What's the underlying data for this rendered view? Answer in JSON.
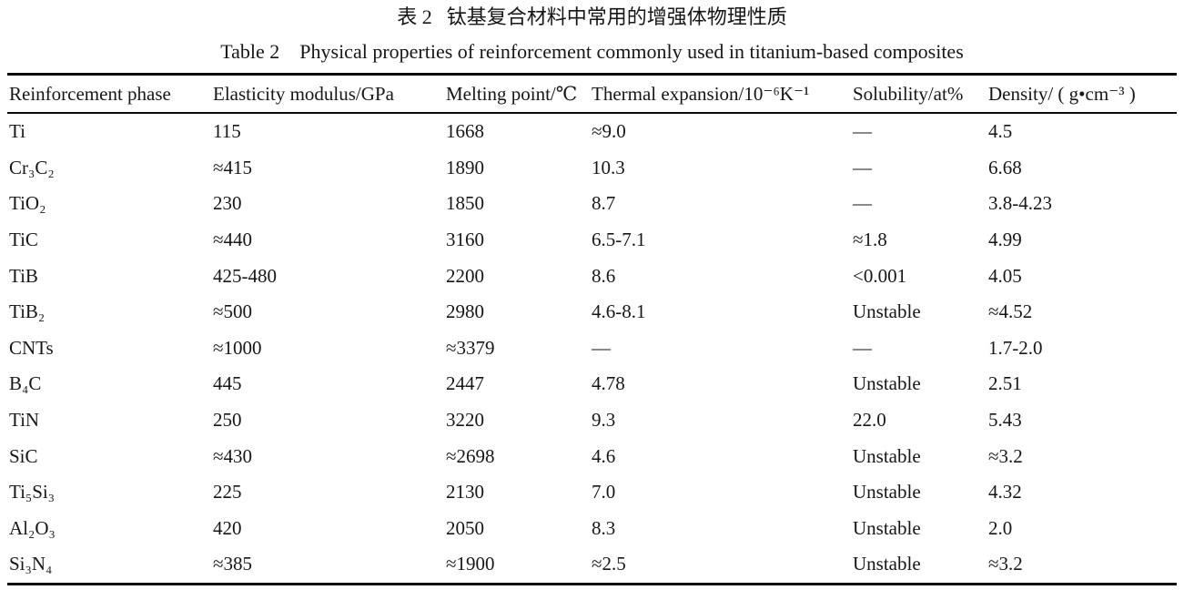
{
  "captions": {
    "chinese_label": "表 2",
    "chinese_title": "钛基复合材料中常用的增强体物理性质",
    "english_label": "Table 2",
    "english_title": "Physical properties of reinforcement commonly used in titanium-based composites"
  },
  "table": {
    "columns": [
      "Reinforcement phase",
      "Elasticity modulus/GPa",
      "Melting point/℃",
      "Thermal expansion/10⁻⁶K⁻¹",
      "Solubility/at%",
      "Density/ ( g•cm⁻³ )"
    ],
    "rows": [
      [
        "Ti",
        "115",
        "1668",
        "≈9.0",
        "—",
        "4.5"
      ],
      [
        "Cr₃C₂",
        "≈415",
        "1890",
        "10.3",
        "—",
        "6.68"
      ],
      [
        "TiO₂",
        "230",
        "1850",
        "8.7",
        "—",
        "3.8-4.23"
      ],
      [
        "TiC",
        "≈440",
        "3160",
        "6.5-7.1",
        "≈1.8",
        "4.99"
      ],
      [
        "TiB",
        "425-480",
        "2200",
        "8.6",
        "<0.001",
        "4.05"
      ],
      [
        "TiB₂",
        "≈500",
        "2980",
        "4.6-8.1",
        "Unstable",
        "≈4.52"
      ],
      [
        "CNTs",
        "≈1000",
        "≈3379",
        "—",
        "—",
        "1.7-2.0"
      ],
      [
        "B₄C",
        "445",
        "2447",
        "4.78",
        "Unstable",
        "2.51"
      ],
      [
        "TiN",
        "250",
        "3220",
        "9.3",
        "22.0",
        "5.43"
      ],
      [
        "SiC",
        "≈430",
        "≈2698",
        "4.6",
        "Unstable",
        "≈3.2"
      ],
      [
        "Ti₅Si₃",
        "225",
        "2130",
        "7.0",
        "Unstable",
        "4.32"
      ],
      [
        "Al₂O₃",
        "420",
        "2050",
        "8.3",
        "Unstable",
        "2.0"
      ],
      [
        "Si₃N₄",
        "≈385",
        "≈1900",
        "≈2.5",
        "Unstable",
        "≈3.2"
      ]
    ]
  }
}
